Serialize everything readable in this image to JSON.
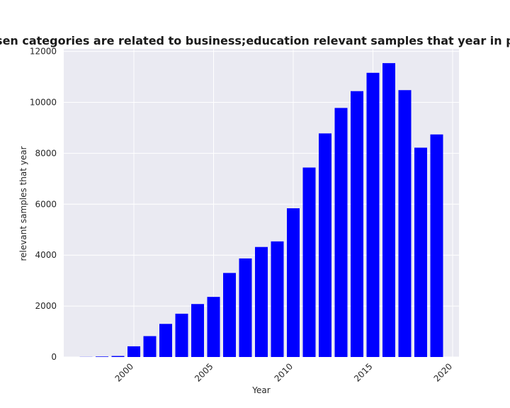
{
  "chart_data": {
    "type": "bar",
    "title": "Number of samples that chosen categories are related to business;education relevant samples that year in privacy policies by year",
    "xlabel": "Year",
    "ylabel": "relevant samples that year",
    "x": [
      1997,
      1998,
      1999,
      2000,
      2001,
      2002,
      2003,
      2004,
      2005,
      2006,
      2007,
      2008,
      2009,
      2010,
      2011,
      2012,
      2013,
      2014,
      2015,
      2016,
      2017,
      2018,
      2019
    ],
    "values": [
      5,
      20,
      40,
      420,
      820,
      1300,
      1700,
      2080,
      2360,
      3300,
      3870,
      4320,
      4540,
      5840,
      7440,
      8780,
      9780,
      10440,
      11160,
      11540,
      10480,
      8220,
      8740
    ],
    "xlim": [
      1995.6,
      2020.4
    ],
    "ylim": [
      0,
      12100
    ],
    "xticks": [
      "2000",
      "2005",
      "2010",
      "2015",
      "2020"
    ],
    "yticks": [
      "0",
      "2000",
      "4000",
      "6000",
      "8000",
      "10000",
      "12000"
    ],
    "bar_color": "#0000ff",
    "plot_background": "#eaeaf2",
    "grid": true
  }
}
